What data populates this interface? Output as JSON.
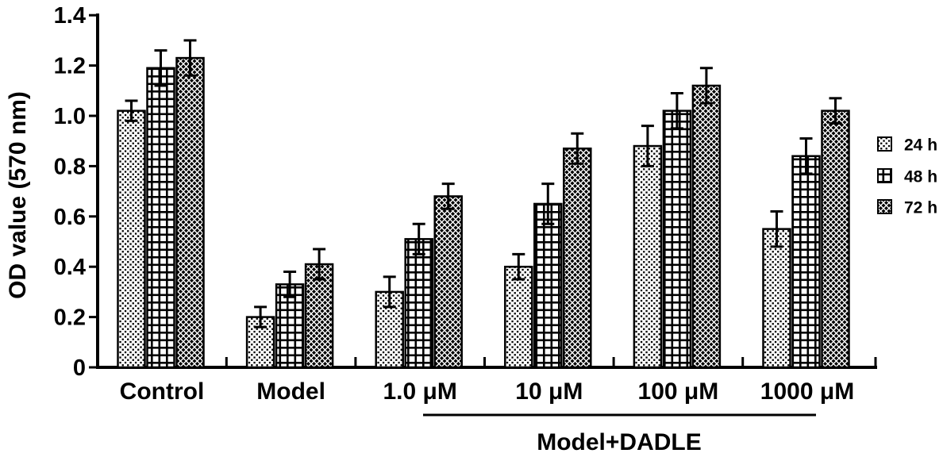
{
  "figure": {
    "background": "#ffffff",
    "foreground": "#000000"
  },
  "chart_data": {
    "type": "bar",
    "title": "",
    "xlabel": "",
    "ylabel": "OD value (570 nm)",
    "ylim": [
      0,
      1.4
    ],
    "yticks": [
      0,
      0.2,
      0.4,
      0.6,
      0.8,
      1.0,
      1.2,
      1.4
    ],
    "ytick_labels": [
      "0",
      "0.2",
      "0.4",
      "0.6",
      "0.8",
      "1.0",
      "1.2",
      "1.4"
    ],
    "categories": [
      "Control",
      "Model",
      "1.0 μM",
      "10 μM",
      "100 μM",
      "1000 μM"
    ],
    "series": [
      {
        "name": "24 h",
        "pattern": "dots",
        "values": [
          1.02,
          0.2,
          0.3,
          0.4,
          0.88,
          0.55
        ],
        "errors": [
          0.04,
          0.04,
          0.06,
          0.05,
          0.08,
          0.07
        ]
      },
      {
        "name": "48 h",
        "pattern": "grid",
        "values": [
          1.19,
          0.33,
          0.51,
          0.65,
          1.02,
          0.84
        ],
        "errors": [
          0.07,
          0.05,
          0.06,
          0.08,
          0.07,
          0.07
        ]
      },
      {
        "name": "72 h",
        "pattern": "crosshatch",
        "values": [
          1.23,
          0.41,
          0.68,
          0.87,
          1.12,
          1.02
        ],
        "errors": [
          0.07,
          0.06,
          0.05,
          0.06,
          0.07,
          0.05
        ]
      }
    ],
    "legend": {
      "position": "right",
      "entries": [
        "24 h",
        "48 h",
        "72 h"
      ]
    },
    "annotation": {
      "label": "Model+DADLE",
      "covers": [
        "1.0 μM",
        "10 μM",
        "100 μM",
        "1000 μM"
      ]
    },
    "grid": false,
    "error_bars": true,
    "bar_fill_style": "black-and-white hatch patterns",
    "colors": {
      "bars": "#000000",
      "background": "#ffffff"
    }
  }
}
